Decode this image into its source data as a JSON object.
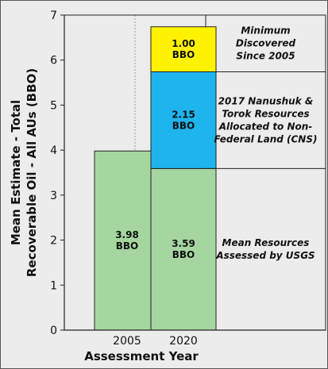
{
  "chart_data": {
    "type": "bar",
    "stacked": true,
    "categories": [
      "2005",
      "2020"
    ],
    "xlabel": "Assessment Year",
    "ylabel_lines": [
      "Mean Estimate - Total",
      "Recoverable Oil - All AUs (BBO)"
    ],
    "ylim": [
      0,
      7
    ],
    "yticks": [
      0,
      1,
      2,
      3,
      4,
      5,
      6,
      7
    ],
    "series": [
      {
        "values": [
          3.98,
          3.59
        ],
        "labels": [
          "3.98\nBBO",
          "3.59\nBBO"
        ],
        "color": "#a6d6a0"
      },
      {
        "values": [
          0,
          2.15
        ],
        "labels": [
          "",
          "2.15\nBBO"
        ],
        "color": "#1eb4ee"
      },
      {
        "values": [
          0,
          1.0
        ],
        "labels": [
          "",
          "1.00\nBBO"
        ],
        "color": "#fff200"
      }
    ],
    "legend": [
      {
        "lines": [
          "Minimum",
          "Discovered",
          "Since 2005"
        ],
        "series": 2
      },
      {
        "lines": [
          "2017 Nanushuk &",
          "Torok Resources",
          "Allocated to Non-",
          "Federal Land (CNS)"
        ],
        "series": 1
      },
      {
        "lines": [
          "Mean Resources",
          "Assessed by USGS"
        ],
        "series": 0
      }
    ],
    "grid": "vertical-center"
  }
}
